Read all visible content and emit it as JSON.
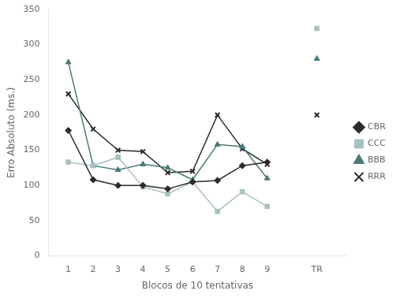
{
  "chart_data": {
    "type": "line",
    "x": [
      1,
      2,
      3,
      4,
      5,
      6,
      7,
      8,
      9,
      10,
      11
    ],
    "series": [
      {
        "name": "CBR",
        "color": "#2a2a2a",
        "marker": "diamond",
        "values": [
          178,
          108,
          100,
          100,
          95,
          105,
          107,
          128,
          133,
          null,
          null
        ]
      },
      {
        "name": "CCC",
        "color": "#a8c0c0",
        "marker": "square",
        "values": [
          133,
          128,
          140,
          98,
          88,
          105,
          63,
          91,
          70,
          null,
          323
        ]
      },
      {
        "name": "BBB",
        "color": "#4a7a7a",
        "marker": "triangle",
        "values": [
          275,
          128,
          122,
          130,
          125,
          108,
          158,
          155,
          110,
          null,
          280
        ]
      },
      {
        "name": "RRR",
        "color": "#2a2a2a",
        "marker": "x",
        "values": [
          230,
          180,
          150,
          148,
          118,
          120,
          200,
          152,
          130,
          null,
          200
        ]
      }
    ],
    "xlabel": "Blocos de 10 tentativas",
    "ylabel": "Erro Absoluto (ms.)",
    "xlim": [
      0.2,
      12.2
    ],
    "xticks": [
      1,
      2,
      3,
      4,
      5,
      6,
      7,
      8,
      9,
      {
        "value": 11,
        "label": "TR"
      }
    ],
    "ylim": [
      0,
      350
    ],
    "yticks": [
      0,
      50,
      100,
      150,
      200,
      250,
      300,
      350
    ],
    "grid": false,
    "legend": "right"
  }
}
